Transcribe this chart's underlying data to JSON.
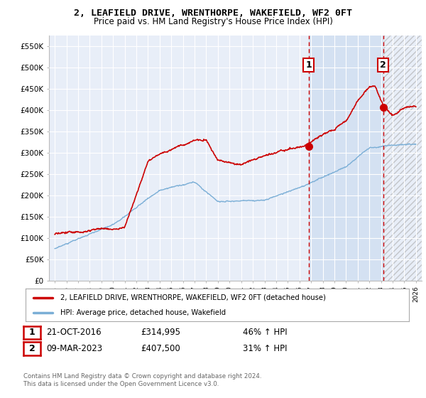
{
  "title": "2, LEAFIELD DRIVE, WRENTHORPE, WAKEFIELD, WF2 0FT",
  "subtitle": "Price paid vs. HM Land Registry's House Price Index (HPI)",
  "legend_line1": "2, LEAFIELD DRIVE, WRENTHORPE, WAKEFIELD, WF2 0FT (detached house)",
  "legend_line2": "HPI: Average price, detached house, Wakefield",
  "annotation1_date": "21-OCT-2016",
  "annotation1_price": "£314,995",
  "annotation1_hpi": "46% ↑ HPI",
  "annotation2_date": "09-MAR-2023",
  "annotation2_price": "£407,500",
  "annotation2_hpi": "31% ↑ HPI",
  "footnote": "Contains HM Land Registry data © Crown copyright and database right 2024.\nThis data is licensed under the Open Government Licence v3.0.",
  "ylim": [
    0,
    575000
  ],
  "yticks": [
    0,
    50000,
    100000,
    150000,
    200000,
    250000,
    300000,
    350000,
    400000,
    450000,
    500000,
    550000
  ],
  "background_color": "#ffffff",
  "plot_bg_color": "#dde8f5",
  "plot_bg_color_normal": "#e8eef8",
  "grid_color": "#ffffff",
  "red_line_color": "#cc0000",
  "blue_line_color": "#7aaed6",
  "vline_color": "#cc0000",
  "annotation_box_color": "#cc0000",
  "shade_color": "#ccdcf0",
  "year_start": 1995,
  "year_end": 2026,
  "sale1_year": 2016.8,
  "sale1_price": 314995,
  "sale2_year": 2023.2,
  "sale2_price": 407500
}
